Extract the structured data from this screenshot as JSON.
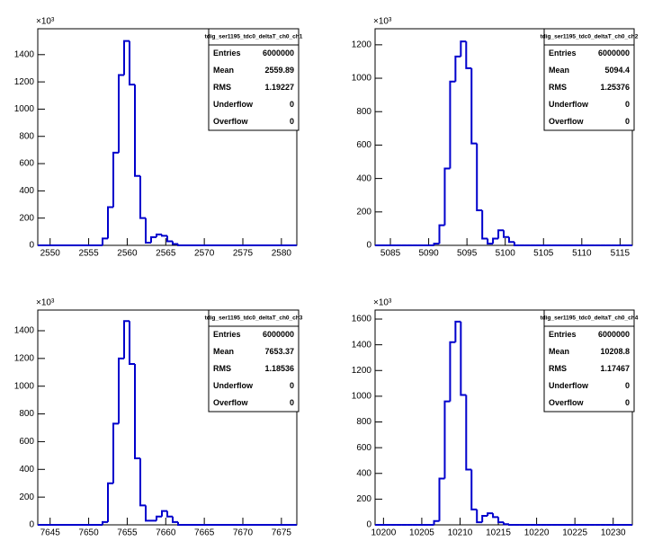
{
  "chart_data": [
    {
      "type": "histogram",
      "y_multiplier": "×10³",
      "bins": [
        2548.4,
        2549.1,
        2549.8,
        2550.5,
        2551.2,
        2551.9,
        2552.6,
        2553.3,
        2554.0,
        2554.7,
        2555.4,
        2556.1,
        2556.8,
        2557.5,
        2558.2,
        2558.9,
        2559.6,
        2560.3,
        2561.0,
        2561.7,
        2562.4,
        2563.1,
        2563.8,
        2564.5,
        2565.2,
        2565.9,
        2566.6,
        2567.3,
        2568.0,
        2568.7,
        2569.4,
        2570.1,
        2570.8,
        2571.5,
        2572.2,
        2572.9,
        2573.6,
        2574.3,
        2575.0,
        2575.7,
        2576.4,
        2577.1,
        2577.8,
        2578.5,
        2579.2,
        2579.9,
        2580.6,
        2581.3,
        2582.0
      ],
      "values": [
        0,
        0,
        0,
        0,
        0,
        0,
        0,
        0,
        0,
        0,
        0,
        0,
        50,
        280,
        680,
        1250,
        1500,
        1180,
        510,
        200,
        20,
        60,
        80,
        70,
        30,
        10,
        0,
        0,
        0,
        0,
        0,
        0,
        0,
        0,
        0,
        0,
        0,
        0,
        0,
        0,
        0,
        0,
        0,
        0,
        0,
        0,
        0,
        0
      ],
      "color": "#0000cc",
      "xlim": [
        2548.4,
        2582.0
      ],
      "xticks": [
        2550,
        2555,
        2560,
        2565,
        2570,
        2575,
        2580
      ],
      "ylim": [
        0,
        1590
      ],
      "yticks": [
        0,
        200,
        400,
        600,
        800,
        1000,
        1200,
        1400
      ],
      "stats": {
        "title": "tdig_ser1195_tdc0_deltaT_ch0_ch1",
        "rows": [
          {
            "label": "Entries",
            "value": 6000000
          },
          {
            "label": "Mean",
            "value": 2559.89
          },
          {
            "label": "RMS",
            "value": 1.19227
          },
          {
            "label": "Underflow",
            "value": 0
          },
          {
            "label": "Overflow",
            "value": 0
          }
        ]
      }
    },
    {
      "type": "histogram",
      "y_multiplier": "×10³",
      "bins": [
        5083.0,
        5083.7,
        5084.4,
        5085.1,
        5085.8,
        5086.5,
        5087.2,
        5087.9,
        5088.6,
        5089.3,
        5090.0,
        5090.7,
        5091.4,
        5092.1,
        5092.8,
        5093.5,
        5094.2,
        5094.9,
        5095.6,
        5096.3,
        5097.0,
        5097.7,
        5098.4,
        5099.1,
        5099.8,
        5100.5,
        5101.2,
        5101.9,
        5102.6,
        5103.3,
        5104.0,
        5104.7,
        5105.4,
        5106.1,
        5106.8,
        5107.5,
        5108.2,
        5108.9,
        5109.6,
        5110.3,
        5111.0,
        5111.7,
        5112.4,
        5113.1,
        5113.8,
        5114.5,
        5115.2,
        5115.9,
        5116.6
      ],
      "values": [
        0,
        0,
        0,
        0,
        0,
        0,
        0,
        0,
        0,
        0,
        0,
        10,
        120,
        460,
        980,
        1130,
        1220,
        1060,
        610,
        210,
        40,
        10,
        40,
        90,
        50,
        20,
        0,
        0,
        0,
        0,
        0,
        0,
        0,
        0,
        0,
        0,
        0,
        0,
        0,
        0,
        0,
        0,
        0,
        0,
        0,
        0,
        0,
        0
      ],
      "color": "#0000cc",
      "xlim": [
        5083.0,
        5116.6
      ],
      "xticks": [
        5085,
        5090,
        5095,
        5100,
        5105,
        5110,
        5115
      ],
      "ylim": [
        0,
        1296
      ],
      "yticks": [
        0,
        200,
        400,
        600,
        800,
        1000,
        1200
      ],
      "stats": {
        "title": "tdig_ser1195_tdc0_deltaT_ch0_ch2",
        "rows": [
          {
            "label": "Entries",
            "value": 6000000
          },
          {
            "label": "Mean",
            "value": 5094.4
          },
          {
            "label": "RMS",
            "value": 1.25376
          },
          {
            "label": "Underflow",
            "value": 0
          },
          {
            "label": "Overflow",
            "value": 0
          }
        ]
      }
    },
    {
      "type": "histogram",
      "y_multiplier": "×10³",
      "bins": [
        7643.4,
        7644.1,
        7644.8,
        7645.5,
        7646.2,
        7646.9,
        7647.6,
        7648.3,
        7649.0,
        7649.7,
        7650.4,
        7651.1,
        7651.8,
        7652.5,
        7653.2,
        7653.9,
        7654.6,
        7655.3,
        7656.0,
        7656.7,
        7657.4,
        7658.1,
        7658.8,
        7659.5,
        7660.2,
        7660.9,
        7661.6,
        7662.3,
        7663.0,
        7663.7,
        7664.4,
        7665.1,
        7665.8,
        7666.5,
        7667.2,
        7667.9,
        7668.6,
        7669.3,
        7670.0,
        7670.7,
        7671.4,
        7672.1,
        7672.8,
        7673.5,
        7674.2,
        7674.9,
        7675.6,
        7676.3,
        7677.0
      ],
      "values": [
        0,
        0,
        0,
        0,
        0,
        0,
        0,
        0,
        0,
        0,
        0,
        0,
        20,
        300,
        730,
        1200,
        1470,
        1160,
        480,
        140,
        30,
        30,
        60,
        100,
        60,
        20,
        0,
        0,
        0,
        0,
        0,
        0,
        0,
        0,
        0,
        0,
        0,
        0,
        0,
        0,
        0,
        0,
        0,
        0,
        0,
        0,
        0,
        0
      ],
      "color": "#0000cc",
      "xlim": [
        7643.4,
        7677.0
      ],
      "xticks": [
        7645,
        7650,
        7655,
        7660,
        7665,
        7670,
        7675
      ],
      "ylim": [
        0,
        1549
      ],
      "yticks": [
        0,
        200,
        400,
        600,
        800,
        1000,
        1200,
        1400
      ],
      "stats": {
        "title": "tdig_ser1195_tdc0_deltaT_ch0_ch3",
        "rows": [
          {
            "label": "Entries",
            "value": 6000000
          },
          {
            "label": "Mean",
            "value": 7653.37
          },
          {
            "label": "RMS",
            "value": 1.18536
          },
          {
            "label": "Underflow",
            "value": 0
          },
          {
            "label": "Overflow",
            "value": 0
          }
        ]
      }
    },
    {
      "type": "histogram",
      "y_multiplier": "×10³",
      "bins": [
        10198.9,
        10199.6,
        10200.3,
        10201.0,
        10201.7,
        10202.4,
        10203.1,
        10203.8,
        10204.5,
        10205.2,
        10205.9,
        10206.6,
        10207.3,
        10208.0,
        10208.7,
        10209.4,
        10210.1,
        10210.8,
        10211.5,
        10212.2,
        10212.9,
        10213.6,
        10214.3,
        10215.0,
        10215.7,
        10216.4,
        10217.1,
        10217.8,
        10218.5,
        10219.2,
        10219.9,
        10220.6,
        10221.3,
        10222.0,
        10222.7,
        10223.4,
        10224.1,
        10224.8,
        10225.5,
        10226.2,
        10226.9,
        10227.6,
        10228.3,
        10229.0,
        10229.7,
        10230.4,
        10231.1,
        10231.8,
        10232.5
      ],
      "values": [
        0,
        0,
        0,
        0,
        0,
        0,
        0,
        0,
        0,
        0,
        0,
        30,
        360,
        960,
        1420,
        1580,
        1010,
        430,
        120,
        20,
        70,
        90,
        60,
        20,
        5,
        0,
        0,
        0,
        0,
        0,
        0,
        0,
        0,
        0,
        0,
        0,
        0,
        0,
        0,
        0,
        0,
        0,
        0,
        0,
        0,
        0,
        0,
        0
      ],
      "color": "#0000cc",
      "xlim": [
        10198.9,
        10232.5
      ],
      "xticks": [
        10200,
        10205,
        10210,
        10215,
        10220,
        10225,
        10230
      ],
      "ylim": [
        0,
        1670
      ],
      "yticks": [
        0,
        200,
        400,
        600,
        800,
        1000,
        1200,
        1400,
        1600
      ],
      "stats": {
        "title": "tdig_ser1195_tdc0_deltaT_ch0_ch4",
        "rows": [
          {
            "label": "Entries",
            "value": 6000000
          },
          {
            "label": "Mean",
            "value": 10208.8
          },
          {
            "label": "RMS",
            "value": 1.17467
          },
          {
            "label": "Underflow",
            "value": 0
          },
          {
            "label": "Overflow",
            "value": 0
          }
        ]
      }
    }
  ]
}
